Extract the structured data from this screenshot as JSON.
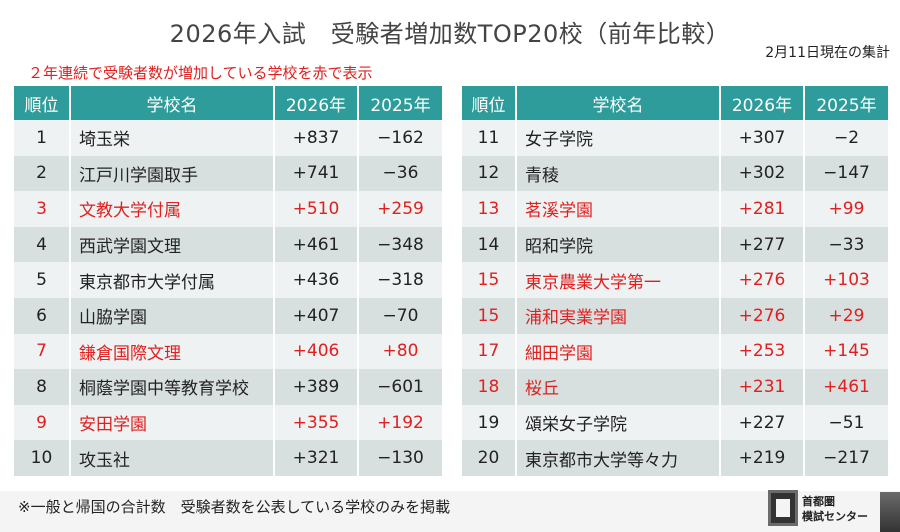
{
  "title": "2026年入試　受験者増加数TOP20校（前年比較）",
  "date_note": "2月11日現在の集計",
  "legend_note": "２年連続で受験者数が増加している学校を赤で表示",
  "colors": {
    "header_bg": "#2e9c9a",
    "highlight": "#e02020",
    "row_light": "#eef2f2",
    "row_dark": "#d8e0df"
  },
  "headers": {
    "rank": "順位",
    "school": "学校名",
    "y2026": "2026年",
    "y2025": "2025年"
  },
  "left_rows": [
    {
      "rank": "1",
      "name": "埼玉栄",
      "y2026": "+837",
      "y2025": "−162",
      "red": false
    },
    {
      "rank": "2",
      "name": "江戸川学園取手",
      "y2026": "+741",
      "y2025": "−36",
      "red": false
    },
    {
      "rank": "3",
      "name": "文教大学付属",
      "y2026": "+510",
      "y2025": "+259",
      "red": true
    },
    {
      "rank": "4",
      "name": "西武学園文理",
      "y2026": "+461",
      "y2025": "−348",
      "red": false
    },
    {
      "rank": "5",
      "name": "東京都市大学付属",
      "y2026": "+436",
      "y2025": "−318",
      "red": false
    },
    {
      "rank": "6",
      "name": "山脇学園",
      "y2026": "+407",
      "y2025": "−70",
      "red": false
    },
    {
      "rank": "7",
      "name": "鎌倉国際文理",
      "y2026": "+406",
      "y2025": "+80",
      "red": true
    },
    {
      "rank": "8",
      "name": "桐蔭学園中等教育学校",
      "y2026": "+389",
      "y2025": "−601",
      "red": false
    },
    {
      "rank": "9",
      "name": "安田学園",
      "y2026": "+355",
      "y2025": "+192",
      "red": true
    },
    {
      "rank": "10",
      "name": "攻玉社",
      "y2026": "+321",
      "y2025": "−130",
      "red": false
    }
  ],
  "right_rows": [
    {
      "rank": "11",
      "name": "女子学院",
      "y2026": "+307",
      "y2025": "−2",
      "red": false
    },
    {
      "rank": "12",
      "name": "青稜",
      "y2026": "+302",
      "y2025": "−147",
      "red": false
    },
    {
      "rank": "13",
      "name": "茗溪学園",
      "y2026": "+281",
      "y2025": "+99",
      "red": true
    },
    {
      "rank": "14",
      "name": "昭和学院",
      "y2026": "+277",
      "y2025": "−33",
      "red": false
    },
    {
      "rank": "15",
      "name": "東京農業大学第一",
      "y2026": "+276",
      "y2025": "+103",
      "red": true
    },
    {
      "rank": "15",
      "name": "浦和実業学園",
      "y2026": "+276",
      "y2025": "+29",
      "red": true
    },
    {
      "rank": "17",
      "name": "細田学園",
      "y2026": "+253",
      "y2025": "+145",
      "red": true
    },
    {
      "rank": "18",
      "name": "桜丘",
      "y2026": "+231",
      "y2025": "+461",
      "red": true
    },
    {
      "rank": "19",
      "name": "頌栄女子学院",
      "y2026": "+227",
      "y2025": "−51",
      "red": false
    },
    {
      "rank": "20",
      "name": "東京都市大学等々力",
      "y2026": "+219",
      "y2025": "−217",
      "red": false
    }
  ],
  "footnote": "※一般と帰国の合計数　受験者数を公表している学校のみを掲載",
  "logo": {
    "line1": "首都圏",
    "line2": "模試センター"
  }
}
